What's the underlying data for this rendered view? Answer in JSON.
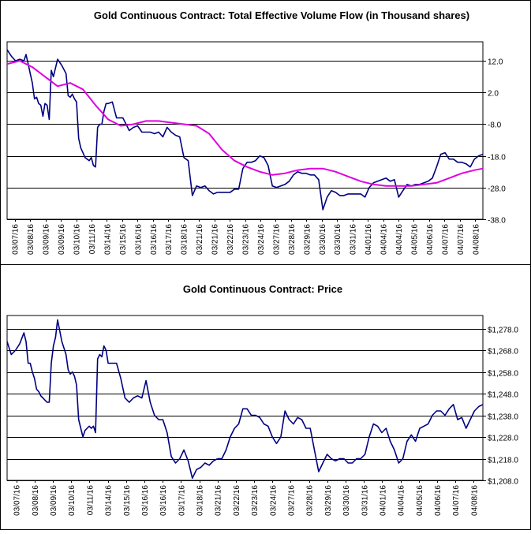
{
  "chart_data": [
    {
      "type": "line",
      "title": "Gold Continuous Contract: Total Effective Volume Flow (in Thousand shares)",
      "xlabel": "",
      "ylabel": "",
      "ylim": [
        -38,
        18
      ],
      "y_ticks": [
        12.0,
        2.0,
        -8.0,
        -18.0,
        -28.0,
        -38.0
      ],
      "y_tick_labels": [
        "12.0",
        "2.0",
        "-8.0",
        "-18.0",
        "-28.0",
        "-38.0"
      ],
      "grid": true,
      "x_tick_labels": [
        "03/07/16",
        "03/08/16",
        "03/09/16",
        "03/09/16",
        "03/10/16",
        "03/11/16",
        "03/14/16",
        "03/15/16",
        "03/16/16",
        "03/16/16",
        "03/17/16",
        "03/18/16",
        "03/21/16",
        "03/21/16",
        "03/22/16",
        "03/23/16",
        "03/24/16",
        "03/27/16",
        "03/28/16",
        "03/29/16",
        "03/30/16",
        "03/30/16",
        "03/31/16",
        "04/01/16",
        "04/04/16",
        "04/04/16",
        "04/05/16",
        "04/06/16",
        "04/07/16",
        "04/07/16",
        "04/08/16"
      ],
      "series": [
        {
          "color": "#000080",
          "x": [
            0,
            2,
            4,
            6,
            8,
            9,
            10,
            11,
            12,
            13,
            14,
            15,
            16,
            17,
            18,
            19,
            20,
            21,
            22,
            24,
            26,
            28,
            29,
            30,
            31,
            32,
            33,
            34,
            35,
            36,
            37,
            38,
            39,
            40,
            41,
            42,
            43,
            44,
            45,
            46,
            47,
            48,
            50,
            52,
            55,
            58,
            60,
            62,
            64,
            66,
            68,
            70,
            72,
            74,
            76,
            78,
            80,
            82,
            84,
            86,
            88,
            90,
            92,
            94,
            96,
            98,
            100
          ],
          "y": [
            15.5,
            13.5,
            12.0,
            12.5,
            12.0,
            14.0,
            11.0,
            8.0,
            5.0,
            0.0,
            0.5,
            -1.5,
            -2.0,
            -5.5,
            -1.5,
            -2.0,
            -6.5,
            9.0,
            7.0,
            12.5,
            10.5,
            8.0,
            1.0,
            0.5,
            1.5,
            0.0,
            -1.0,
            -12.5,
            -15.5,
            -17.0,
            -18.5,
            -19.0,
            -19.5,
            -18.5,
            -21.0,
            -21.5,
            -9.0,
            -8.0,
            -8.0,
            -4.0,
            -1.5,
            -1.5,
            -1.0,
            -6.0,
            -6.0,
            -10.0,
            -9.0,
            -8.5,
            -10.5,
            -10.5,
            -10.5,
            -11.0,
            -10.5,
            -12.0,
            -9.0,
            -10.5,
            -11.5,
            -12.0,
            -18.5,
            -19.5,
            -30.5,
            -27.5,
            -28.0,
            -27.5,
            -29.0,
            -30.0,
            -29.5
          ]
        },
        {
          "color": "#000080",
          "x": [
            100,
            102,
            104,
            106,
            108,
            110,
            112,
            114,
            116,
            118,
            120,
            122,
            124,
            126,
            128,
            130,
            132,
            134,
            136,
            138,
            140,
            142,
            144,
            146,
            148,
            150,
            152,
            154,
            156,
            158,
            160,
            162,
            164,
            166,
            168,
            170,
            172,
            174,
            176,
            178,
            180,
            182,
            184,
            186,
            188,
            190,
            192,
            194,
            196,
            198,
            200
          ],
          "y": [
            -29.5,
            -29.5,
            -29.5,
            -29.5,
            -28.5,
            -28.5,
            -22.0,
            -20.0,
            -20.0,
            -19.5,
            -18.0,
            -18.5,
            -21.0,
            -27.5,
            -28.0,
            -27.5,
            -27.0,
            -26.0,
            -24.0,
            -23.0,
            -23.5,
            -23.5,
            -24.0,
            -24.0,
            -25.5,
            -35.0,
            -31.0,
            -29.0,
            -29.5,
            -30.5,
            -30.5,
            -30.0,
            -30.0,
            -30.0,
            -30.0,
            -31.0,
            -28.0,
            -26.5,
            -26.0,
            -25.5,
            -25.0,
            -26.0,
            -25.5,
            -31.0,
            -29.0,
            -27.0,
            -27.5,
            -27.0,
            -27.0,
            -26.5,
            -26.0
          ]
        },
        {
          "color": "#000080",
          "x": [
            200,
            202,
            204,
            206,
            208,
            210,
            212,
            214,
            216,
            218,
            220,
            222,
            224,
            226
          ],
          "y": [
            -26.0,
            -25.0,
            -21.5,
            -17.5,
            -17.0,
            -19.0,
            -19.0,
            -20.0,
            -20.0,
            -20.5,
            -21.5,
            -19.0,
            -18.0,
            -17.5
          ]
        },
        {
          "color": "#e000e0",
          "x": [
            0,
            6,
            12,
            18,
            24,
            30,
            36,
            42,
            48,
            54,
            60,
            66,
            72,
            78,
            84,
            90,
            96,
            102,
            108,
            114,
            120,
            126,
            132,
            138,
            144,
            150,
            156,
            162,
            168,
            174,
            180,
            186,
            192,
            198,
            204,
            210,
            216,
            222,
            226
          ],
          "y": [
            11.0,
            12.0,
            10.0,
            7.0,
            4.0,
            5.0,
            3.0,
            -2.0,
            -6.5,
            -8.5,
            -8.0,
            -7.0,
            -7.0,
            -7.5,
            -8.0,
            -8.5,
            -11.0,
            -16.0,
            -19.5,
            -21.5,
            -23.0,
            -24.0,
            -23.5,
            -22.5,
            -22.0,
            -22.0,
            -23.0,
            -24.5,
            -26.0,
            -27.0,
            -27.5,
            -27.5,
            -27.5,
            -27.0,
            -26.5,
            -25.0,
            -23.5,
            -22.5,
            -22.0
          ]
        }
      ]
    },
    {
      "type": "line",
      "title": "Gold Continuous Contract: Price",
      "xlabel": "",
      "ylabel": "",
      "ylim": [
        1208,
        1284
      ],
      "y_ticks": [
        1278,
        1268,
        1258,
        1248,
        1238,
        1228,
        1218,
        1208
      ],
      "y_tick_labels": [
        "$1,278.0",
        "$1,268.0",
        "$1,258.0",
        "$1,248.0",
        "$1,238.0",
        "$1,228.0",
        "$1,218.0",
        "$1,208.0"
      ],
      "grid": true,
      "x_tick_labels": [
        "03/07/16",
        "03/08/16",
        "03/09/16",
        "03/10/16",
        "03/11/16",
        "03/14/16",
        "03/15/16",
        "03/16/16",
        "03/16/16",
        "03/17/16",
        "03/18/16",
        "03/21/16",
        "03/22/16",
        "03/23/16",
        "03/24/16",
        "03/27/16",
        "03/28/16",
        "03/29/16",
        "03/30/16",
        "03/31/16",
        "04/01/16",
        "04/04/16",
        "04/05/16",
        "04/06/16",
        "04/07/16",
        "04/08/16"
      ],
      "series": [
        {
          "color": "#000080",
          "x": [
            0,
            2,
            4,
            6,
            8,
            9,
            10,
            11,
            12,
            13,
            14,
            15,
            16,
            17,
            18,
            19,
            20,
            21,
            22,
            23,
            24,
            26,
            28,
            29,
            30,
            31,
            32,
            33,
            34,
            35,
            36,
            37,
            38,
            39,
            40,
            41,
            42,
            43,
            44,
            45,
            46,
            47,
            48,
            50,
            52,
            54,
            56,
            58,
            60,
            62,
            64,
            66,
            68,
            70,
            72,
            74,
            76,
            78,
            80,
            82,
            84,
            86,
            88,
            90,
            92,
            94,
            96,
            98,
            100
          ],
          "y": [
            1272,
            1266,
            1268,
            1271,
            1276,
            1272,
            1262,
            1262,
            1258,
            1255,
            1250,
            1249,
            1247,
            1246,
            1245,
            1244,
            1244,
            1262,
            1270,
            1274,
            1282,
            1272,
            1266,
            1259,
            1257,
            1258,
            1256,
            1252,
            1236,
            1232,
            1228,
            1231,
            1232,
            1233,
            1232,
            1233,
            1230,
            1264,
            1266,
            1265,
            1270,
            1268,
            1262,
            1262,
            1262,
            1255,
            1246,
            1244,
            1246,
            1247,
            1246,
            1254,
            1244,
            1238,
            1236,
            1236,
            1230,
            1219,
            1216,
            1218,
            1222,
            1217,
            1209,
            1213,
            1214,
            1216,
            1215,
            1217,
            1218
          ]
        },
        {
          "color": "#000080",
          "x": [
            100,
            102,
            104,
            106,
            108,
            110,
            112,
            114,
            116,
            118,
            120,
            122,
            124,
            126,
            128,
            130,
            132,
            134,
            136,
            138,
            140,
            142,
            144,
            146,
            148,
            150,
            152,
            154,
            156,
            158,
            160,
            162,
            164,
            166,
            168,
            170,
            172,
            174,
            176,
            178,
            180,
            182,
            184,
            186,
            188,
            190,
            192,
            194,
            196,
            198,
            200
          ],
          "y": [
            1218,
            1218,
            1222,
            1228,
            1232,
            1234,
            1241,
            1241,
            1238,
            1238,
            1237,
            1234,
            1233,
            1228,
            1225,
            1228,
            1240,
            1236,
            1234,
            1237,
            1236,
            1232,
            1232,
            1222,
            1212,
            1216,
            1220,
            1218,
            1217,
            1218,
            1218,
            1216,
            1216,
            1218,
            1218,
            1220,
            1228,
            1234,
            1233,
            1230,
            1232,
            1226,
            1222,
            1216,
            1218,
            1226,
            1229,
            1226,
            1232,
            1233,
            1234
          ]
        },
        {
          "color": "#000080",
          "x": [
            200,
            202,
            204,
            206,
            208,
            210,
            212,
            214,
            216,
            218,
            220,
            222,
            224,
            226
          ],
          "y": [
            1234,
            1238,
            1240,
            1240,
            1238,
            1241,
            1243,
            1236,
            1237,
            1232,
            1236,
            1240,
            1242,
            1243
          ]
        }
      ]
    }
  ]
}
